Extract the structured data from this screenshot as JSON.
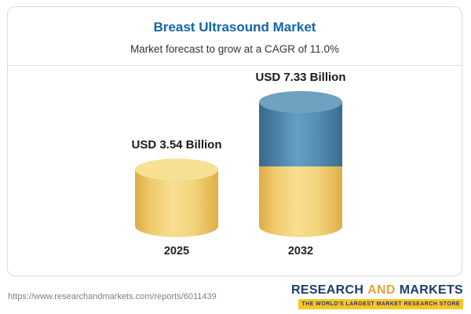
{
  "card": {
    "title": "Breast Ultrasound Market",
    "subtitle": "Market forecast to grow at a CAGR of 11.0%"
  },
  "chart_data": {
    "type": "bar",
    "variant": "3d-cylinder",
    "title": "Breast Ultrasound Market",
    "subtitle": "Market forecast to grow at a CAGR of 11.0%",
    "categories": [
      "2025",
      "2032"
    ],
    "values": [
      3.54,
      7.33
    ],
    "unit": "USD Billion",
    "value_labels": [
      "USD 3.54 Billion",
      "USD 7.33 Billion"
    ],
    "cagr_percent": 11.0,
    "colors": {
      "base_gold": "#F0CC6E",
      "growth_blue": "#4E86AC"
    },
    "layout": {
      "grid": false,
      "legend": false,
      "note": "2032 cylinder is stacked: gold base (2025 value) with blue growth segment on top"
    }
  },
  "bars": [
    {
      "label": "USD 3.54 Billion",
      "year": "2025"
    },
    {
      "label": "USD 7.33 Billion",
      "year": "2032"
    }
  ],
  "footer": {
    "url": "https://www.researchandmarkets.com/reports/6011439",
    "logo": {
      "research": "RESEARCH",
      "and": "AND",
      "markets": "MARKETS",
      "tagline": "THE WORLD'S LARGEST MARKET RESEARCH STORE"
    }
  }
}
